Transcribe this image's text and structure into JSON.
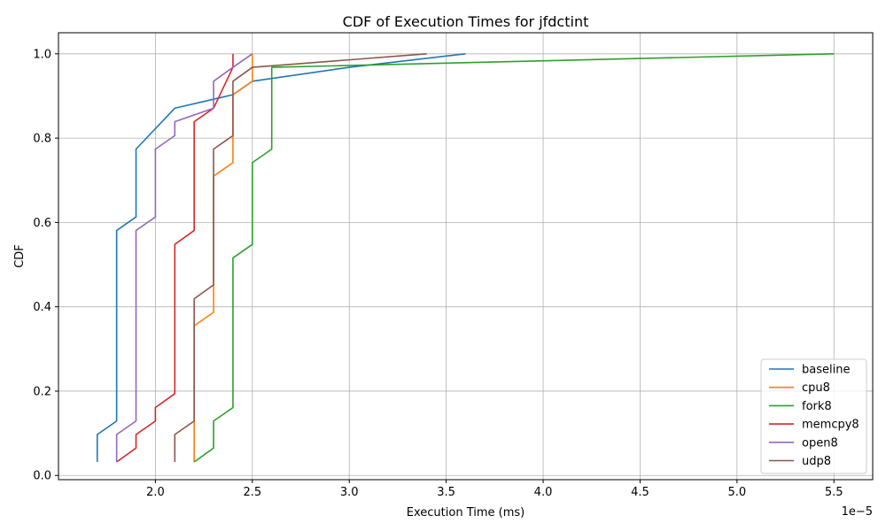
{
  "chart_data": {
    "type": "line",
    "title": "CDF of Execution Times for jfdctint",
    "xlabel": "Execution Time (ms)",
    "ylabel": "CDF",
    "x_scale_label": "1e−5",
    "x_ticks": [
      2.0,
      2.5,
      3.0,
      3.5,
      4.0,
      4.5,
      5.0,
      5.5
    ],
    "x_tick_labels": [
      "2.0",
      "2.5",
      "3.0",
      "3.5",
      "4.0",
      "4.5",
      "5.0",
      "5.5"
    ],
    "y_ticks": [
      0.0,
      0.2,
      0.4,
      0.6,
      0.8,
      1.0
    ],
    "y_tick_labels": [
      "0.0",
      "0.2",
      "0.4",
      "0.6",
      "0.8",
      "1.0"
    ],
    "xlim": [
      1.5,
      5.7
    ],
    "ylim": [
      -0.01,
      1.05
    ],
    "x_unit_note": "x values are in units of 1e-5 ms",
    "grid": true,
    "legend_position": "lower-right",
    "series": [
      {
        "name": "baseline",
        "color": "#1f77b4",
        "x": [
          1.7,
          1.7,
          1.8,
          1.8,
          1.8,
          1.9,
          1.9,
          2.1,
          2.4,
          2.5,
          3.0,
          3.6
        ],
        "y": [
          0.032,
          0.097,
          0.129,
          0.581,
          0.581,
          0.613,
          0.774,
          0.871,
          0.903,
          0.935,
          0.968,
          1.0
        ]
      },
      {
        "name": "cpu8",
        "color": "#ff7f0e",
        "x": [
          2.2,
          2.2,
          2.2,
          2.3,
          2.3,
          2.3,
          2.4,
          2.4,
          2.4,
          2.5,
          2.5
        ],
        "y": [
          0.032,
          0.129,
          0.355,
          0.387,
          0.71,
          0.71,
          0.742,
          0.903,
          0.903,
          0.935,
          1.0
        ]
      },
      {
        "name": "fork8",
        "color": "#2ca02c",
        "x": [
          2.2,
          2.3,
          2.3,
          2.4,
          2.4,
          2.5,
          2.5,
          2.6,
          2.6,
          5.5
        ],
        "y": [
          0.032,
          0.065,
          0.129,
          0.161,
          0.516,
          0.548,
          0.742,
          0.774,
          0.968,
          1.0
        ]
      },
      {
        "name": "memcpy8",
        "color": "#d62728",
        "x": [
          1.8,
          1.9,
          1.9,
          2.0,
          2.0,
          2.1,
          2.1,
          2.2,
          2.2,
          2.3,
          2.4,
          2.4
        ],
        "y": [
          0.032,
          0.065,
          0.097,
          0.129,
          0.161,
          0.194,
          0.548,
          0.581,
          0.839,
          0.871,
          0.968,
          1.0
        ]
      },
      {
        "name": "open8",
        "color": "#9467bd",
        "x": [
          1.8,
          1.8,
          1.9,
          1.9,
          1.9,
          2.0,
          2.0,
          2.0,
          2.1,
          2.1,
          2.3,
          2.3,
          2.4,
          2.5
        ],
        "y": [
          0.032,
          0.097,
          0.129,
          0.581,
          0.581,
          0.613,
          0.774,
          0.774,
          0.806,
          0.839,
          0.871,
          0.935,
          0.968,
          1.0
        ]
      },
      {
        "name": "udp8",
        "color": "#8c564b",
        "x": [
          2.1,
          2.1,
          2.2,
          2.2,
          2.3,
          2.3,
          2.4,
          2.4,
          2.5,
          3.4
        ],
        "y": [
          0.032,
          0.097,
          0.129,
          0.419,
          0.452,
          0.774,
          0.806,
          0.935,
          0.968,
          1.0
        ]
      }
    ]
  }
}
